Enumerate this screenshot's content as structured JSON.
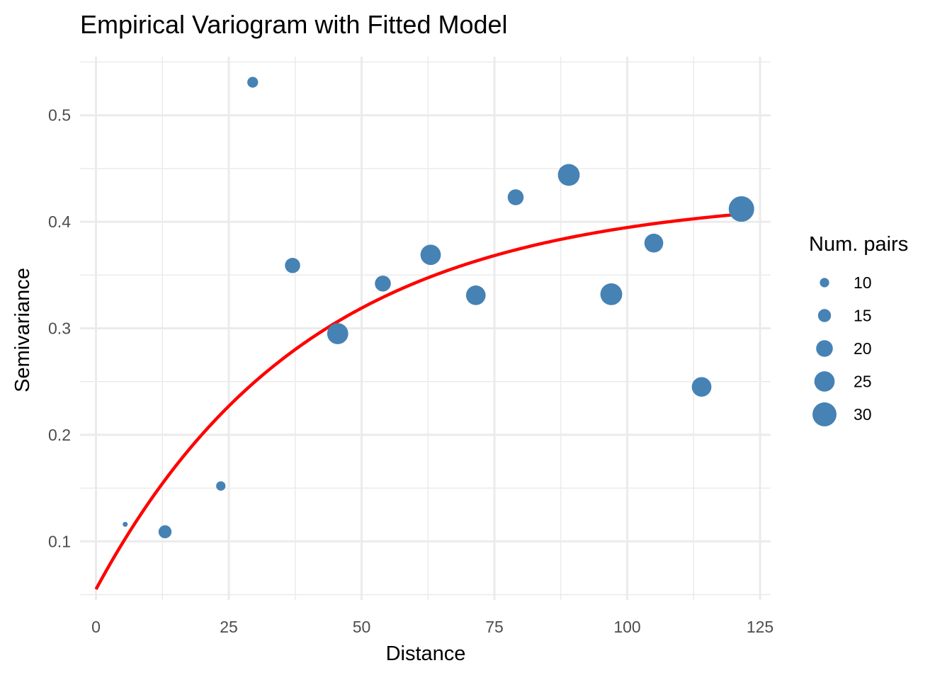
{
  "chart_data": {
    "type": "scatter",
    "title": "Empirical Variogram with Fitted Model",
    "xlabel": "Distance",
    "ylabel": "Semivariance",
    "xlim": [
      -3,
      127
    ],
    "ylim": [
      0.045,
      0.555
    ],
    "x_ticks": [
      0,
      25,
      50,
      75,
      100,
      125
    ],
    "y_ticks": [
      0.1,
      0.2,
      0.3,
      0.4,
      0.5
    ],
    "grid": true,
    "legend_position": "right",
    "point_color": "#4682B4",
    "line_color": "#FF0000",
    "series": [
      {
        "kind": "points",
        "x": [
          5.5,
          13,
          23.5,
          29.5,
          37,
          45.5,
          54,
          63,
          71.5,
          79,
          89,
          97,
          105,
          114,
          121.5
        ],
        "y": [
          0.116,
          0.109,
          0.152,
          0.531,
          0.359,
          0.295,
          0.342,
          0.369,
          0.331,
          0.423,
          0.444,
          0.332,
          0.38,
          0.245,
          0.412
        ],
        "size": [
          4,
          15,
          10,
          12,
          18,
          26,
          19,
          25,
          24,
          19,
          27,
          27,
          23,
          24,
          32
        ]
      },
      {
        "kind": "fitted-curve",
        "model": "exponential",
        "nugget": 0.055,
        "psill": 0.37,
        "range": 40,
        "x_range": [
          0,
          121.5
        ]
      }
    ],
    "legend": {
      "title": "Num. pairs",
      "entries": [
        10,
        15,
        20,
        25,
        30
      ]
    }
  }
}
